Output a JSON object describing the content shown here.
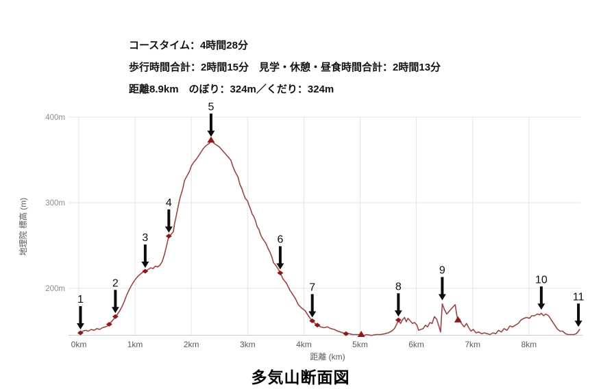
{
  "header": {
    "line1": "コースタイム：4時間28分",
    "line2": "歩行時間合計：2時間15分　見学・休憩・昼食時間合計：2時間13分",
    "line3": "距離8.9km　のぼり：324m／くだり：324m"
  },
  "title": "多気山断面図",
  "chart_data": {
    "type": "line",
    "title": "多気山断面図",
    "xlabel": "距離 (km)",
    "ylabel": "地理院 標高 (m)",
    "xlim": [
      0,
      8.9
    ],
    "ylim": [
      145,
      400
    ],
    "grid": true,
    "legend": "none",
    "colors": {
      "line": "#9c4343",
      "marker": "#8b1a1a",
      "arrow": "#0d0d0d",
      "grid": "#e4e4e4",
      "axis": "#c9c9c9"
    },
    "x_ticks": [
      {
        "label": "0km",
        "km": 0
      },
      {
        "label": "1km",
        "km": 1
      },
      {
        "label": "2km",
        "km": 2
      },
      {
        "label": "3km",
        "km": 3
      },
      {
        "label": "4km",
        "km": 4
      },
      {
        "label": "5km",
        "km": 5
      },
      {
        "label": "6km",
        "km": 6
      },
      {
        "label": "7km",
        "km": 7
      },
      {
        "label": "8km",
        "km": 8
      }
    ],
    "y_ticks": [
      {
        "label": "200m",
        "m": 200
      },
      {
        "label": "300m",
        "m": 300
      },
      {
        "label": "400m",
        "m": 400
      }
    ],
    "waypoints": [
      {
        "n": "1",
        "km": 0.03,
        "elev": 148,
        "marker": "diamond"
      },
      {
        "n": "2",
        "km": 0.65,
        "elev": 167,
        "marker": "diamond"
      },
      {
        "n": "3",
        "km": 1.18,
        "elev": 220,
        "marker": "diamond"
      },
      {
        "n": "4",
        "km": 1.6,
        "elev": 261,
        "marker": "diamond"
      },
      {
        "n": "5",
        "km": 2.35,
        "elev": 373,
        "marker": "triangle"
      },
      {
        "n": "6",
        "km": 3.58,
        "elev": 218,
        "marker": "diamond"
      },
      {
        "n": "7",
        "km": 4.15,
        "elev": 162,
        "marker": "diamond"
      },
      {
        "n": "8",
        "km": 5.68,
        "elev": 163,
        "marker": "diamond"
      },
      {
        "n": "9",
        "km": 6.46,
        "elev": 182,
        "marker": "none"
      },
      {
        "n": "10",
        "km": 8.22,
        "elev": 171,
        "marker": "none"
      },
      {
        "n": "11",
        "km": 8.88,
        "elev": 151,
        "marker": "none"
      }
    ],
    "extra_markers": [
      {
        "shape": "diamond",
        "km": 0.54,
        "elev": 158
      },
      {
        "shape": "diamond",
        "km": 4.24,
        "elev": 157
      },
      {
        "shape": "diamond",
        "km": 4.75,
        "elev": 147
      },
      {
        "shape": "triangle",
        "km": 5.02,
        "elev": 146
      },
      {
        "shape": "triangle",
        "km": 6.74,
        "elev": 163
      }
    ],
    "series": [
      {
        "name": "標高",
        "points": [
          [
            0,
            147
          ],
          [
            0.03,
            148
          ],
          [
            0.07,
            150
          ],
          [
            0.12,
            151
          ],
          [
            0.17,
            150
          ],
          [
            0.22,
            152
          ],
          [
            0.27,
            151
          ],
          [
            0.32,
            153
          ],
          [
            0.37,
            152
          ],
          [
            0.42,
            154
          ],
          [
            0.47,
            155
          ],
          [
            0.51,
            156
          ],
          [
            0.54,
            158
          ],
          [
            0.58,
            161
          ],
          [
            0.62,
            164
          ],
          [
            0.65,
            167
          ],
          [
            0.69,
            170
          ],
          [
            0.73,
            174
          ],
          [
            0.77,
            179
          ],
          [
            0.81,
            185
          ],
          [
            0.85,
            192
          ],
          [
            0.9,
            199
          ],
          [
            0.95,
            205
          ],
          [
            1,
            210
          ],
          [
            1.05,
            214
          ],
          [
            1.1,
            217
          ],
          [
            1.14,
            219
          ],
          [
            1.18,
            220
          ],
          [
            1.23,
            222
          ],
          [
            1.28,
            224
          ],
          [
            1.32,
            223
          ],
          [
            1.36,
            226
          ],
          [
            1.4,
            225
          ],
          [
            1.44,
            227
          ],
          [
            1.48,
            231
          ],
          [
            1.52,
            239
          ],
          [
            1.56,
            250
          ],
          [
            1.6,
            261
          ],
          [
            1.64,
            263
          ],
          [
            1.68,
            266
          ],
          [
            1.7,
            275
          ],
          [
            1.73,
            284
          ],
          [
            1.77,
            297
          ],
          [
            1.8,
            306
          ],
          [
            1.85,
            317
          ],
          [
            1.88,
            326
          ],
          [
            1.92,
            331
          ],
          [
            1.97,
            337
          ],
          [
            2,
            343
          ],
          [
            2.04,
            347
          ],
          [
            2.09,
            351
          ],
          [
            2.13,
            355
          ],
          [
            2.17,
            359
          ],
          [
            2.21,
            363
          ],
          [
            2.25,
            366
          ],
          [
            2.29,
            368
          ],
          [
            2.33,
            370
          ],
          [
            2.35,
            373
          ],
          [
            2.41,
            369
          ],
          [
            2.46,
            367
          ],
          [
            2.5,
            365
          ],
          [
            2.54,
            362
          ],
          [
            2.58,
            359
          ],
          [
            2.62,
            356
          ],
          [
            2.66,
            353
          ],
          [
            2.7,
            350
          ],
          [
            2.74,
            342
          ],
          [
            2.78,
            336
          ],
          [
            2.83,
            330
          ],
          [
            2.86,
            322
          ],
          [
            2.9,
            316
          ],
          [
            2.93,
            310
          ],
          [
            2.96,
            305
          ],
          [
            3,
            302
          ],
          [
            3.02,
            298
          ],
          [
            3.05,
            293
          ],
          [
            3.08,
            287
          ],
          [
            3.11,
            284
          ],
          [
            3.14,
            279
          ],
          [
            3.17,
            272
          ],
          [
            3.2,
            269
          ],
          [
            3.23,
            263
          ],
          [
            3.26,
            259
          ],
          [
            3.3,
            255
          ],
          [
            3.33,
            252
          ],
          [
            3.36,
            247
          ],
          [
            3.4,
            242
          ],
          [
            3.43,
            237
          ],
          [
            3.46,
            230
          ],
          [
            3.5,
            227
          ],
          [
            3.54,
            223
          ],
          [
            3.58,
            218
          ],
          [
            3.63,
            211
          ],
          [
            3.69,
            206
          ],
          [
            3.75,
            198
          ],
          [
            3.8,
            193
          ],
          [
            3.85,
            188
          ],
          [
            3.9,
            181
          ],
          [
            3.96,
            177
          ],
          [
            4.02,
            174
          ],
          [
            4.06,
            170
          ],
          [
            4.1,
            166
          ],
          [
            4.15,
            162
          ],
          [
            4.2,
            159
          ],
          [
            4.24,
            157
          ],
          [
            4.3,
            155
          ],
          [
            4.36,
            154
          ],
          [
            4.42,
            155
          ],
          [
            4.48,
            153
          ],
          [
            4.54,
            152
          ],
          [
            4.6,
            150
          ],
          [
            4.65,
            149
          ],
          [
            4.7,
            148
          ],
          [
            4.75,
            147
          ],
          [
            4.81,
            147
          ],
          [
            4.87,
            146
          ],
          [
            4.93,
            146
          ],
          [
            5,
            146
          ],
          [
            5.06,
            145
          ],
          [
            5.12,
            146
          ],
          [
            5.2,
            145
          ],
          [
            5.28,
            146
          ],
          [
            5.36,
            146
          ],
          [
            5.44,
            147
          ],
          [
            5.5,
            148
          ],
          [
            5.56,
            150
          ],
          [
            5.61,
            153
          ],
          [
            5.65,
            158
          ],
          [
            5.68,
            163
          ],
          [
            5.72,
            159
          ],
          [
            5.75,
            163
          ],
          [
            5.79,
            166
          ],
          [
            5.82,
            161
          ],
          [
            5.85,
            165
          ],
          [
            5.89,
            162
          ],
          [
            5.93,
            159
          ],
          [
            5.97,
            160
          ],
          [
            6.01,
            157
          ],
          [
            6.04,
            151
          ],
          [
            6.08,
            152
          ],
          [
            6.12,
            153
          ],
          [
            6.16,
            157
          ],
          [
            6.2,
            155
          ],
          [
            6.24,
            160
          ],
          [
            6.28,
            159
          ],
          [
            6.32,
            167
          ],
          [
            6.36,
            164
          ],
          [
            6.4,
            156
          ],
          [
            6.43,
            149
          ],
          [
            6.46,
            182
          ],
          [
            6.5,
            175
          ],
          [
            6.54,
            170
          ],
          [
            6.58,
            173
          ],
          [
            6.62,
            176
          ],
          [
            6.66,
            179
          ],
          [
            6.69,
            181
          ],
          [
            6.72,
            168
          ],
          [
            6.74,
            163
          ],
          [
            6.77,
            164
          ],
          [
            6.8,
            159
          ],
          [
            6.85,
            155
          ],
          [
            6.89,
            159
          ],
          [
            6.93,
            154
          ],
          [
            6.97,
            150
          ],
          [
            7.01,
            152
          ],
          [
            7.06,
            148
          ],
          [
            7.11,
            149
          ],
          [
            7.16,
            147
          ],
          [
            7.21,
            148
          ],
          [
            7.26,
            147
          ],
          [
            7.31,
            146
          ],
          [
            7.36,
            148
          ],
          [
            7.41,
            147
          ],
          [
            7.46,
            151
          ],
          [
            7.51,
            149
          ],
          [
            7.56,
            153
          ],
          [
            7.61,
            151
          ],
          [
            7.66,
            156
          ],
          [
            7.71,
            155
          ],
          [
            7.76,
            157
          ],
          [
            7.81,
            159
          ],
          [
            7.86,
            163
          ],
          [
            7.91,
            165
          ],
          [
            7.96,
            166
          ],
          [
            8.01,
            165
          ],
          [
            8.05,
            168
          ],
          [
            8.1,
            168
          ],
          [
            8.15,
            170
          ],
          [
            8.19,
            169
          ],
          [
            8.22,
            171
          ],
          [
            8.26,
            168
          ],
          [
            8.3,
            170
          ],
          [
            8.35,
            168
          ],
          [
            8.4,
            163
          ],
          [
            8.45,
            158
          ],
          [
            8.5,
            153
          ],
          [
            8.55,
            150
          ],
          [
            8.6,
            150
          ],
          [
            8.65,
            147
          ],
          [
            8.7,
            146
          ],
          [
            8.75,
            146
          ],
          [
            8.8,
            146
          ],
          [
            8.84,
            147
          ],
          [
            8.87,
            149
          ],
          [
            8.9,
            152
          ]
        ]
      }
    ]
  }
}
